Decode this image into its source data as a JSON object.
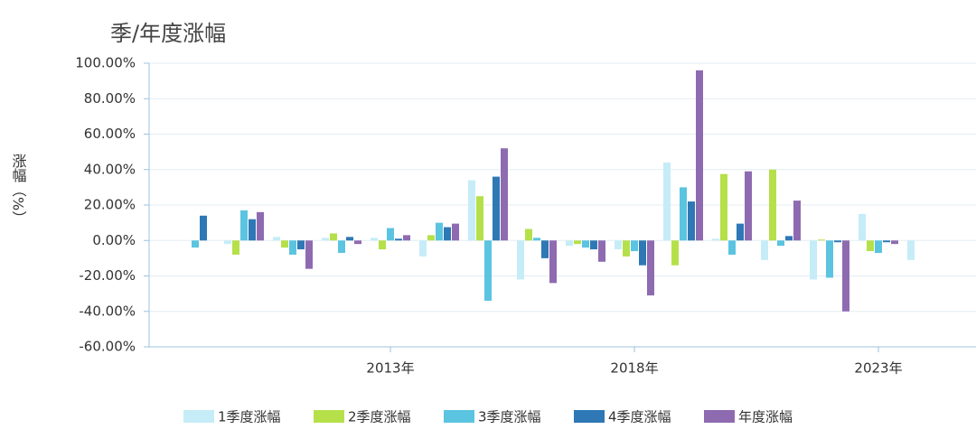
{
  "chart_data": {
    "type": "bar",
    "title": "季/年度涨幅",
    "y_label": "涨幅（%）",
    "categories": [
      null,
      null,
      null,
      null,
      "2013年",
      null,
      null,
      null,
      null,
      "2018年",
      null,
      null,
      null,
      null,
      "2023年",
      null
    ],
    "series": [
      {
        "name": "1季度涨幅",
        "color": "#c6ecf8",
        "values": [
          null,
          -2,
          2,
          1.5,
          1.5,
          -9,
          34,
          -22,
          -3,
          -5,
          44,
          1,
          -11,
          -22,
          15,
          -11
        ]
      },
      {
        "name": "2季度涨幅",
        "color": "#b5e04a",
        "values": [
          null,
          -8,
          -4,
          4,
          -5,
          3,
          25,
          6.5,
          -2,
          -9,
          -14,
          37.5,
          40,
          0.5,
          -6,
          null
        ]
      },
      {
        "name": "3季度涨幅",
        "color": "#5bc4e0",
        "values": [
          -4,
          17,
          -8,
          -7,
          7,
          10,
          -34,
          1.5,
          -4,
          -6,
          30,
          -8,
          -3,
          -21,
          -7,
          null
        ]
      },
      {
        "name": "4季度涨幅",
        "color": "#2e78b5",
        "values": [
          14,
          12,
          -5,
          2,
          1,
          7.5,
          36,
          -10,
          -5,
          -14,
          22,
          9.5,
          2.5,
          -1,
          -1,
          null
        ]
      },
      {
        "name": "年度涨幅",
        "color": "#8e6bb0",
        "values": [
          null,
          16,
          -16,
          -2,
          3,
          9.5,
          52,
          -24,
          -12,
          -31,
          96,
          39,
          22.5,
          -40,
          -2,
          null
        ]
      }
    ],
    "ylim": [
      -60,
      100
    ],
    "yticks": [
      {
        "value": -60,
        "label": "-60.00%"
      },
      {
        "value": -40,
        "label": "-40.00%"
      },
      {
        "value": -20,
        "label": "-20.00%"
      },
      {
        "value": 0,
        "label": "0.00%"
      },
      {
        "value": 20,
        "label": "20.00%"
      },
      {
        "value": 40,
        "label": "40.00%"
      },
      {
        "value": 60,
        "label": "60.00%"
      },
      {
        "value": 80,
        "label": "80.00%"
      },
      {
        "value": 100,
        "label": "100.00%"
      }
    ],
    "grid": true
  }
}
